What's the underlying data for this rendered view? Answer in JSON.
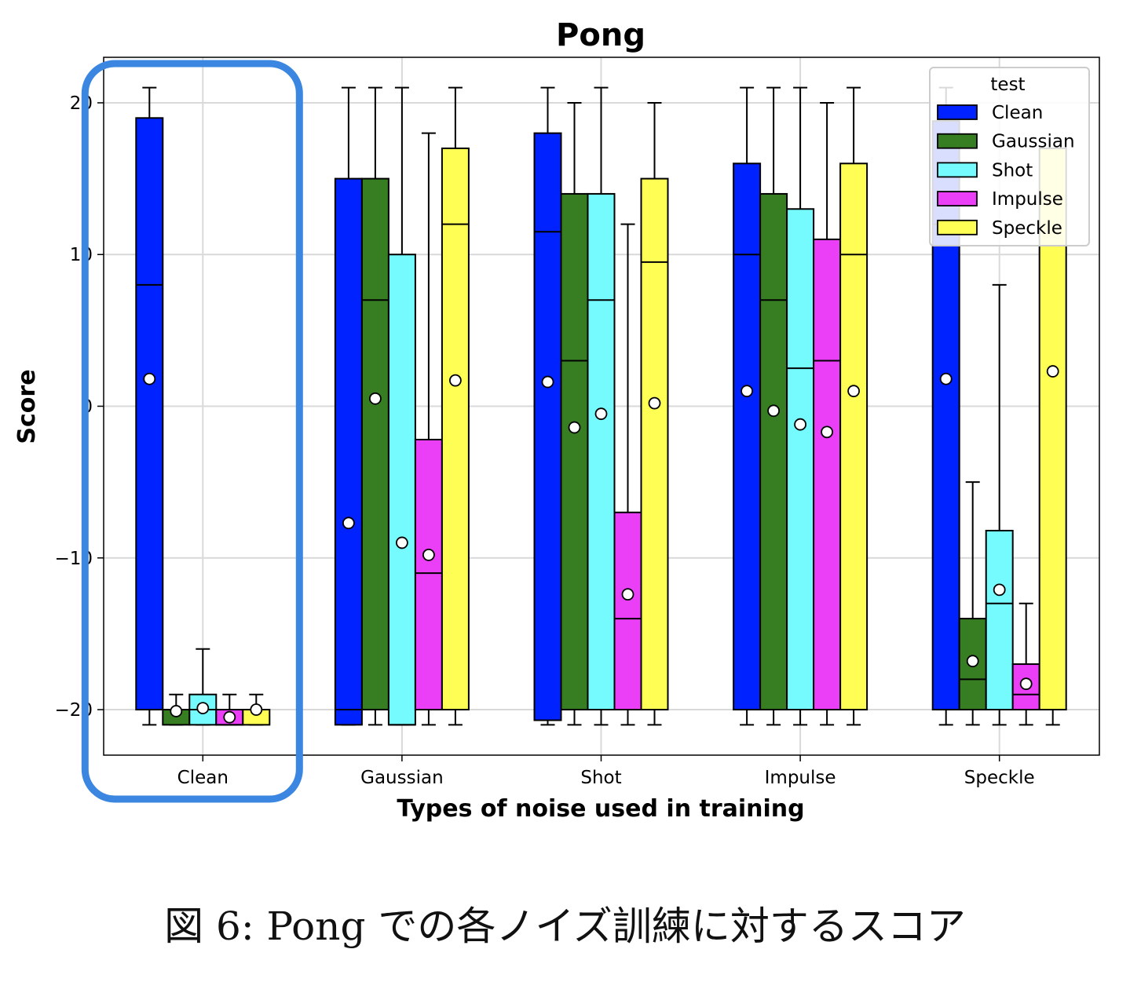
{
  "chart_data": {
    "type": "box",
    "title": "Pong",
    "xlabel": "Types of noise used in training",
    "ylabel": "Score",
    "ylim": [
      -23,
      23
    ],
    "yticks": [
      -20,
      -10,
      0,
      10,
      20
    ],
    "grid": true,
    "categories": [
      "Clean",
      "Gaussian",
      "Shot",
      "Impulse",
      "Speckle"
    ],
    "legend": {
      "title": "test",
      "placement": "top-right"
    },
    "series": [
      {
        "name": "Clean",
        "color": "#0022ff",
        "boxes": [
          {
            "whislo": -21,
            "q1": -20,
            "med": 8,
            "q3": 19,
            "whishi": 21,
            "mean": 1.8
          },
          {
            "whislo": -21,
            "q1": -21,
            "med": -20,
            "q3": 15,
            "whishi": 21,
            "mean": -7.7
          },
          {
            "whislo": -21,
            "q1": -20.7,
            "med": 11.5,
            "q3": 18,
            "whishi": 21,
            "mean": 1.6
          },
          {
            "whislo": -21,
            "q1": -20,
            "med": 10,
            "q3": 16,
            "whishi": 21,
            "mean": 1.0
          },
          {
            "whislo": -21,
            "q1": -20,
            "med": 12,
            "q3": 18.8,
            "whishi": 21,
            "mean": 1.8
          }
        ]
      },
      {
        "name": "Gaussian",
        "color": "#377e22",
        "boxes": [
          {
            "whislo": -21,
            "q1": -21,
            "med": -20,
            "q3": -20,
            "whishi": -19,
            "mean": -20.1
          },
          {
            "whislo": -21,
            "q1": -20,
            "med": 7,
            "q3": 15,
            "whishi": 21,
            "mean": 0.5
          },
          {
            "whislo": -21,
            "q1": -20,
            "med": 3,
            "q3": 14,
            "whishi": 20,
            "mean": -1.4
          },
          {
            "whislo": -21,
            "q1": -20,
            "med": 7,
            "q3": 14,
            "whishi": 21,
            "mean": -0.3
          },
          {
            "whislo": -21,
            "q1": -20,
            "med": -18,
            "q3": -14,
            "whishi": -5,
            "mean": -16.8
          }
        ]
      },
      {
        "name": "Shot",
        "color": "#75fbfd",
        "boxes": [
          {
            "whislo": -21,
            "q1": -21,
            "med": -20,
            "q3": -19,
            "whishi": -16,
            "mean": -19.9
          },
          {
            "whislo": -21,
            "q1": -21,
            "med": -21,
            "q3": 10,
            "whishi": 21,
            "mean": -9.0
          },
          {
            "whislo": -21,
            "q1": -20,
            "med": 7,
            "q3": 14,
            "whishi": 21,
            "mean": -0.5
          },
          {
            "whislo": -21,
            "q1": -20,
            "med": 2.5,
            "q3": 13,
            "whishi": 21,
            "mean": -1.2
          },
          {
            "whislo": -21,
            "q1": -20,
            "med": -13,
            "q3": -8.2,
            "whishi": 8,
            "mean": -12.1
          }
        ]
      },
      {
        "name": "Impulse",
        "color": "#ea3ff7",
        "boxes": [
          {
            "whislo": -21,
            "q1": -21,
            "med": -21,
            "q3": -20,
            "whishi": -19,
            "mean": -20.5
          },
          {
            "whislo": -21,
            "q1": -20,
            "med": -11,
            "q3": -2.2,
            "whishi": 18,
            "mean": -9.8
          },
          {
            "whislo": -21,
            "q1": -20,
            "med": -14,
            "q3": -7,
            "whishi": 12,
            "mean": -12.4
          },
          {
            "whislo": -21,
            "q1": -20,
            "med": 3,
            "q3": 11,
            "whishi": 20,
            "mean": -1.7
          },
          {
            "whislo": -21,
            "q1": -20,
            "med": -19,
            "q3": -17,
            "whishi": -13,
            "mean": -18.3
          }
        ]
      },
      {
        "name": "Speckle",
        "color": "#fffe54",
        "boxes": [
          {
            "whislo": -21,
            "q1": -21,
            "med": -20,
            "q3": -20,
            "whishi": -19,
            "mean": -20.0
          },
          {
            "whislo": -21,
            "q1": -20,
            "med": 12,
            "q3": 17,
            "whishi": 21,
            "mean": 1.7
          },
          {
            "whislo": -21,
            "q1": -20,
            "med": 9.5,
            "q3": 15,
            "whishi": 20,
            "mean": 0.2
          },
          {
            "whislo": -21,
            "q1": -20,
            "med": 10,
            "q3": 16,
            "whishi": 21,
            "mean": 1.0
          },
          {
            "whislo": -21,
            "q1": -20,
            "med": 17,
            "q3": 17,
            "whishi": 17,
            "mean": 2.3
          }
        ]
      }
    ],
    "highlight": {
      "category": "Clean",
      "color": "#3a86e0"
    }
  },
  "caption": "図 6: Pong での各ノイズ訓練に対するスコア"
}
